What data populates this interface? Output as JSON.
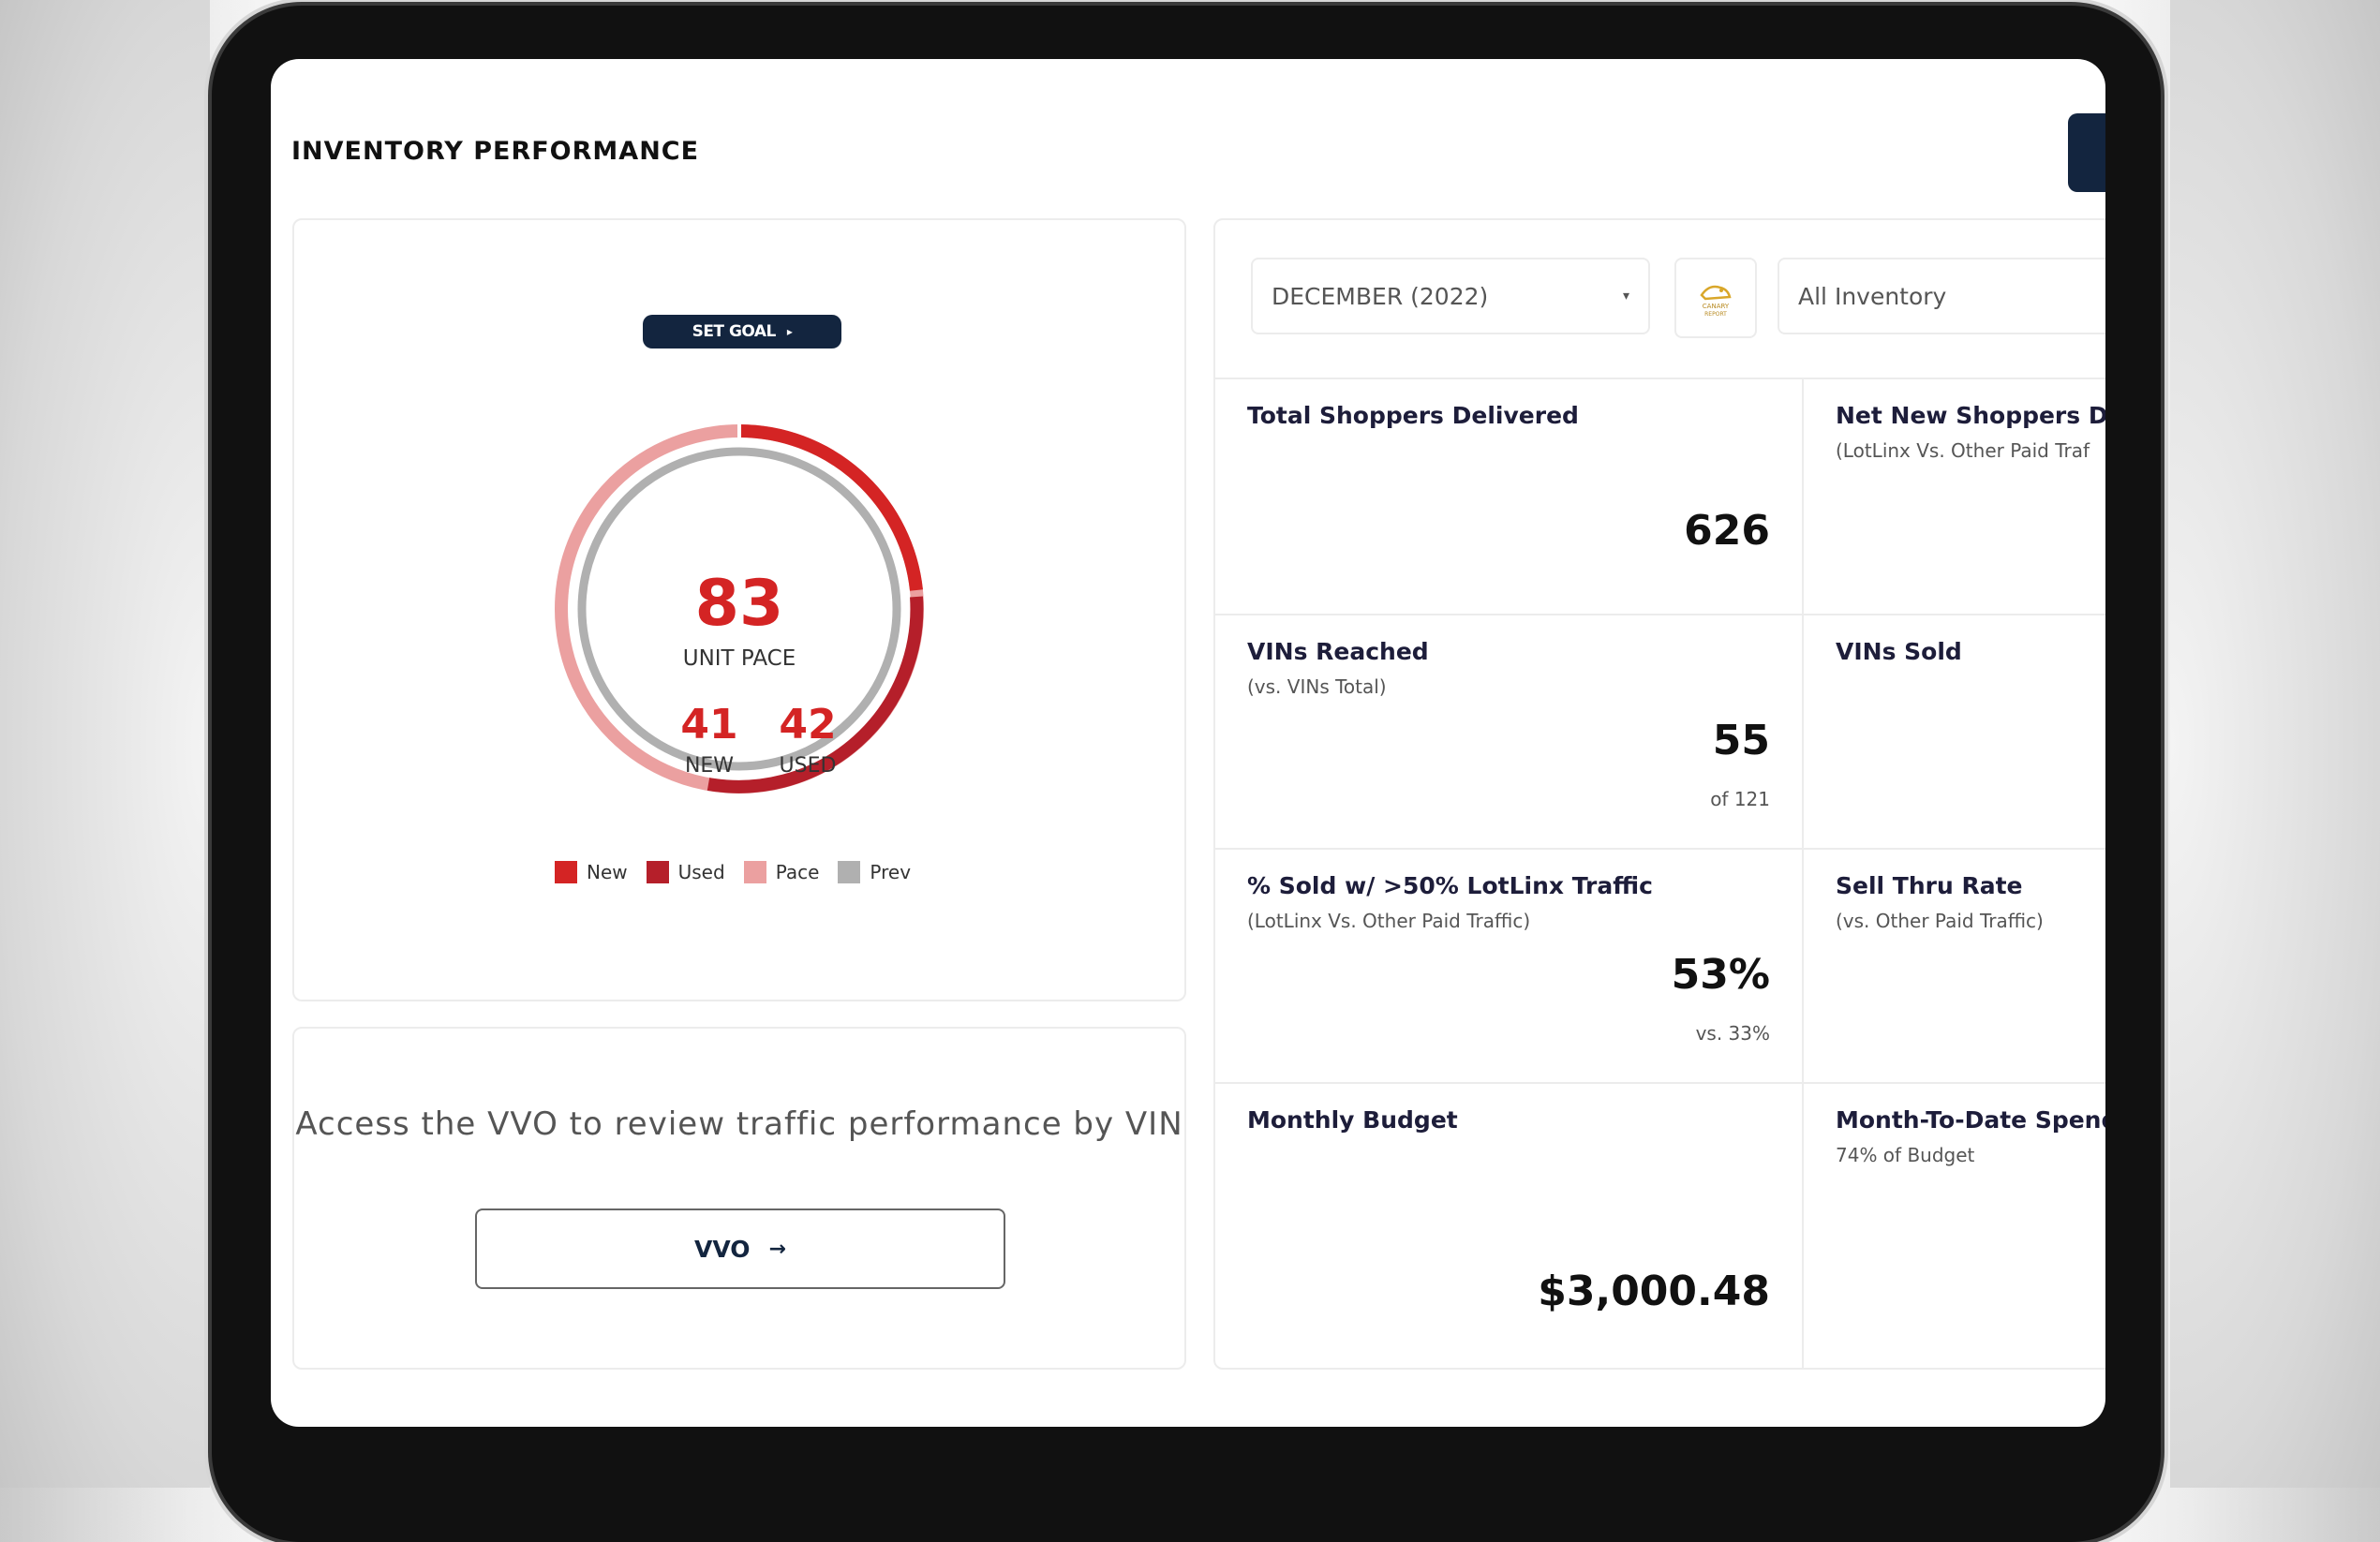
{
  "page": {
    "title": "INVENTORY PERFORMANCE"
  },
  "goal": {
    "set_goal_label": "SET GOAL",
    "unit_pace_value": "83",
    "unit_pace_label": "UNIT PACE",
    "new_value": "41",
    "new_label": "NEW",
    "used_value": "42",
    "used_label": "USED",
    "legend": [
      {
        "label": "New",
        "color": "#d42424"
      },
      {
        "label": "Used",
        "color": "#b51f2a"
      },
      {
        "label": "Pace",
        "color": "#eba0a0"
      },
      {
        "label": "Prev",
        "color": "#b0b0b0"
      }
    ]
  },
  "vvo": {
    "description": "Access the VVO to review traffic performance by VIN",
    "button_label": "VVO"
  },
  "filters": {
    "month_selected": "DECEMBER (2022)",
    "logo_label": "CANARY REPORT",
    "inventory_value": "All Inventory"
  },
  "metrics": [
    {
      "title": "Total Shoppers Delivered",
      "subtitle": "",
      "value": "626",
      "note": ""
    },
    {
      "title": "Net New Shoppers Deli",
      "subtitle": "(LotLinx Vs. Other Paid Traf",
      "value": "",
      "note": ""
    },
    {
      "title": "VINs Reached",
      "subtitle": "(vs. VINs Total)",
      "value": "55",
      "note": "of 121"
    },
    {
      "title": "VINs Sold",
      "subtitle": "",
      "value": "",
      "note": ""
    },
    {
      "title": "% Sold w/ >50% LotLinx Traffic",
      "subtitle": "(LotLinx Vs. Other Paid Traffic)",
      "value": "53%",
      "note": "vs. 33%"
    },
    {
      "title": "Sell Thru Rate",
      "subtitle": "(vs. Other Paid Traffic)",
      "value": "",
      "note": ""
    },
    {
      "title": "Monthly Budget",
      "subtitle": "",
      "value": "$3,000.48",
      "note": ""
    },
    {
      "title": "Month-To-Date Spend",
      "subtitle": "74% of Budget",
      "value": "",
      "note": ""
    }
  ]
}
